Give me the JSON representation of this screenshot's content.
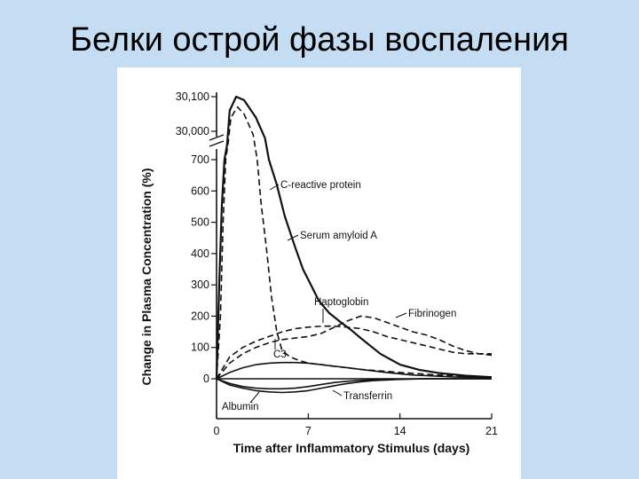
{
  "slide": {
    "title": "Белки острой фазы воспаления"
  },
  "colors": {
    "background": "#c4ddf3",
    "panel": "#ffffff",
    "ink": "#111111"
  },
  "chart_data": {
    "type": "line",
    "title": "",
    "xlabel": "Time after Inflammatory Stimulus (days)",
    "ylabel": "Change in Plasma Concentration (%)",
    "xlim": [
      0,
      21
    ],
    "x_ticks": [
      0,
      7,
      14,
      21
    ],
    "y_ticks": [
      "0",
      "100",
      "200",
      "300",
      "400",
      "500",
      "600",
      "700",
      "30,000",
      "30,100"
    ],
    "y_axis_break": {
      "lower_max": 750,
      "upper_min": 29950,
      "upper_max": 30100
    },
    "series": [
      {
        "name": "C-reactive protein",
        "style": "solid",
        "points": [
          [
            0,
            0
          ],
          [
            0.2,
            300
          ],
          [
            0.4,
            550
          ],
          [
            0.6,
            700
          ],
          [
            0.8,
            29960
          ],
          [
            1.0,
            30060
          ],
          [
            1.5,
            30100
          ],
          [
            2.1,
            30090
          ],
          [
            3.0,
            30040
          ],
          [
            3.7,
            29980
          ],
          [
            4.0,
            700
          ],
          [
            4.6,
            620
          ],
          [
            5.2,
            520
          ],
          [
            6.0,
            420
          ],
          [
            6.6,
            350
          ],
          [
            7.2,
            300
          ],
          [
            7.8,
            250
          ],
          [
            8.6,
            210
          ],
          [
            9.5,
            180
          ],
          [
            10.3,
            155
          ],
          [
            11,
            130
          ],
          [
            12.5,
            80
          ],
          [
            14,
            45
          ],
          [
            15.5,
            28
          ],
          [
            17,
            18
          ],
          [
            19,
            10
          ],
          [
            21,
            5
          ]
        ]
      },
      {
        "name": "Serum amyloid A",
        "style": "dashed",
        "points": [
          [
            0,
            0
          ],
          [
            0.3,
            200
          ],
          [
            0.5,
            500
          ],
          [
            0.7,
            700
          ],
          [
            0.9,
            29970
          ],
          [
            1.1,
            30040
          ],
          [
            1.6,
            30070
          ],
          [
            2.1,
            30050
          ],
          [
            2.8,
            29990
          ],
          [
            3.1,
            700
          ],
          [
            3.4,
            560
          ],
          [
            3.8,
            420
          ],
          [
            4.2,
            260
          ],
          [
            4.6,
            150
          ],
          [
            5.0,
            90
          ],
          [
            5.6,
            70
          ],
          [
            6.2,
            60
          ],
          [
            7,
            50
          ],
          [
            9,
            40
          ],
          [
            11,
            30
          ],
          [
            14,
            20
          ],
          [
            17,
            12
          ],
          [
            21,
            5
          ]
        ]
      },
      {
        "name": "Haptoglobin",
        "style": "dashed",
        "points": [
          [
            0,
            0
          ],
          [
            1,
            70
          ],
          [
            2,
            100
          ],
          [
            3,
            120
          ],
          [
            4,
            135
          ],
          [
            5,
            150
          ],
          [
            6,
            160
          ],
          [
            7,
            165
          ],
          [
            8,
            168
          ],
          [
            9,
            168
          ],
          [
            10,
            165
          ],
          [
            11,
            160
          ],
          [
            12,
            150
          ],
          [
            13,
            135
          ],
          [
            14,
            125
          ],
          [
            15,
            115
          ],
          [
            16,
            105
          ],
          [
            17,
            95
          ],
          [
            18,
            85
          ],
          [
            19,
            80
          ],
          [
            20,
            80
          ],
          [
            21,
            80
          ]
        ]
      },
      {
        "name": "Fibrinogen",
        "style": "dashed",
        "points": [
          [
            0,
            0
          ],
          [
            1,
            50
          ],
          [
            2,
            80
          ],
          [
            3,
            100
          ],
          [
            4,
            115
          ],
          [
            5,
            125
          ],
          [
            6,
            130
          ],
          [
            7,
            135
          ],
          [
            8,
            145
          ],
          [
            9,
            165
          ],
          [
            10,
            185
          ],
          [
            11,
            200
          ],
          [
            12,
            195
          ],
          [
            13,
            180
          ],
          [
            14,
            165
          ],
          [
            15,
            150
          ],
          [
            16,
            140
          ],
          [
            17,
            125
          ],
          [
            18,
            105
          ],
          [
            19,
            90
          ],
          [
            20,
            80
          ],
          [
            21,
            75
          ]
        ]
      },
      {
        "name": "C3",
        "style": "solid",
        "points": [
          [
            0,
            0
          ],
          [
            1,
            20
          ],
          [
            2,
            35
          ],
          [
            3,
            45
          ],
          [
            4,
            50
          ],
          [
            5,
            52
          ],
          [
            6,
            52
          ],
          [
            7,
            50
          ],
          [
            8,
            45
          ],
          [
            9,
            40
          ],
          [
            10,
            35
          ],
          [
            11,
            30
          ],
          [
            12,
            25
          ],
          [
            13,
            20
          ],
          [
            14,
            16
          ],
          [
            15,
            12
          ],
          [
            16,
            10
          ],
          [
            17,
            8
          ],
          [
            18,
            6
          ],
          [
            19,
            5
          ],
          [
            20,
            4
          ],
          [
            21,
            3
          ]
        ]
      },
      {
        "name": "Transferrin",
        "style": "solid",
        "points": [
          [
            0,
            0
          ],
          [
            1,
            -15
          ],
          [
            2,
            -25
          ],
          [
            3,
            -30
          ],
          [
            4,
            -32
          ],
          [
            5,
            -32
          ],
          [
            6,
            -30
          ],
          [
            7,
            -25
          ],
          [
            8,
            -18
          ],
          [
            9,
            -12
          ],
          [
            10,
            -8
          ],
          [
            11,
            -5
          ],
          [
            12,
            -3
          ],
          [
            14,
            -1
          ],
          [
            16,
            0
          ],
          [
            21,
            0
          ]
        ]
      },
      {
        "name": "Albumin",
        "style": "solid",
        "points": [
          [
            0,
            0
          ],
          [
            1,
            -20
          ],
          [
            2,
            -30
          ],
          [
            3,
            -38
          ],
          [
            4,
            -42
          ],
          [
            5,
            -44
          ],
          [
            6,
            -42
          ],
          [
            7,
            -38
          ],
          [
            8,
            -30
          ],
          [
            9,
            -22
          ],
          [
            10,
            -15
          ],
          [
            11,
            -10
          ],
          [
            12,
            -6
          ],
          [
            14,
            -2
          ],
          [
            16,
            0
          ],
          [
            21,
            0
          ]
        ]
      }
    ],
    "grid": false,
    "legend": "none (direct labels)"
  }
}
